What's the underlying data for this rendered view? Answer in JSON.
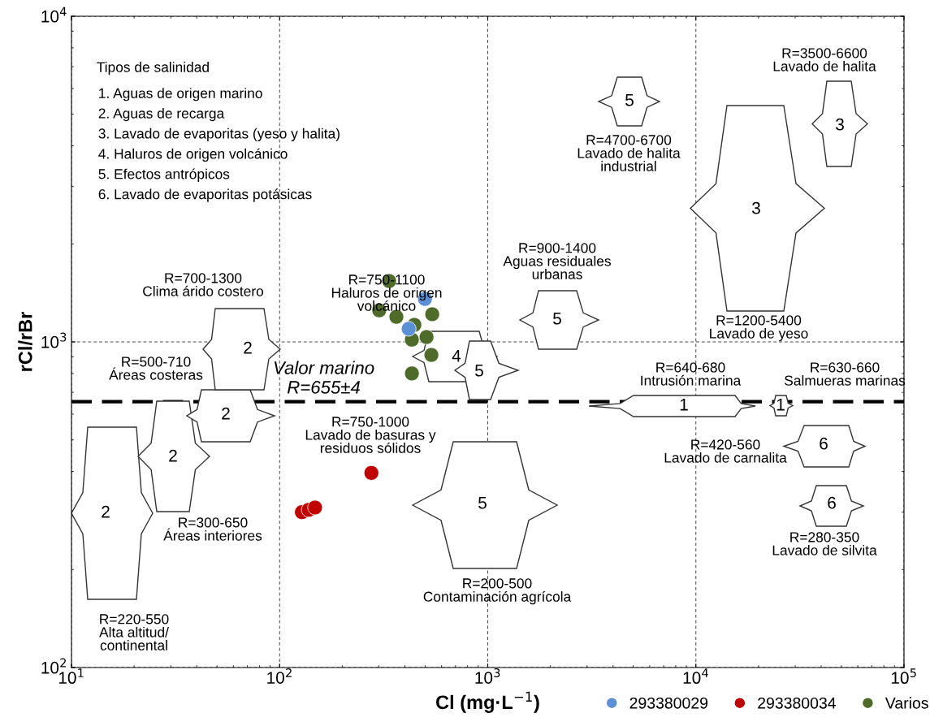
{
  "chart_data": {
    "type": "scatter",
    "xlabel": "Cl (mg·L$^{−1}$)",
    "ylabel": "rCl/rBr",
    "log": "xy",
    "grid": true,
    "legend": "bottom right",
    "marker": "circle",
    "xlim": [
      10,
      100000
    ],
    "ylim": [
      100,
      10000
    ],
    "xticks": [
      {
        "value": 10,
        "label": "10$^{1}$"
      },
      {
        "value": 100,
        "label": "10$^{2}$"
      },
      {
        "value": 1000,
        "label": "10$^{3}$"
      },
      {
        "value": 10000,
        "label": "10$^{4}$"
      },
      {
        "value": 100000,
        "label": "10$^{5}$"
      }
    ],
    "yticks": [
      {
        "value": 100,
        "label": "10$^{2}$"
      },
      {
        "value": 1000,
        "label": "10$^{3}$"
      },
      {
        "value": 10000,
        "label": "10$^{4}$"
      }
    ],
    "series": [
      {
        "name": "293380029",
        "color": "#5b8fd6",
        "x": [
          499,
          417
        ],
        "values": [
          1355,
          1097
        ]
      },
      {
        "name": "293380034",
        "color": "#c00000",
        "x": [
          276,
          128,
          138,
          148
        ],
        "values": [
          396,
          300,
          305,
          310
        ]
      },
      {
        "name": "Varios",
        "color": "#4f6b2a",
        "x": [
          336,
          301,
          364,
          541,
          444,
          432,
          508,
          536,
          432
        ],
        "values": [
          1538,
          1250,
          1194,
          1216,
          1128,
          1016,
          1035,
          912,
          800
        ]
      }
    ],
    "ref_lines": [
      {
        "axis": "y",
        "value": 655,
        "label": "Valor marino\nR=655±4",
        "color": "#000000",
        "line_style": "dashed"
      }
    ],
    "annotations": [
      "Tipos de salinidad",
      "1. Aguas de origen marino",
      "2. Aguas de recarga",
      "3. Lavado de evaporitas (yeso y halita)",
      "4. Haluros de origen volcánico",
      "5. Efectos antrópicos",
      "6. Lavado de evaporitas potásicas",
      "R=700-1300\nClima árido costero",
      "R=500-710\nÁreas costeras",
      "R=300-650\nÁreas interiores",
      "R=220-550\nAlta altitud/\ncontinental",
      "R=750-1100\nHaluros de origen\nvolcánico",
      "R=750-1000\nLavado de basuras y\nresiduos sólidos",
      "R=900-1400\nAguas residuales\nurbanas",
      "R=4700-6700\nLavado de halita\nindustrial",
      "R=3500-6600\nLavado de halita",
      "R=1200-5400\nLavado de yeso",
      "R=640-680\nIntrusión marina",
      "R=630-660\nSalmueras marinas",
      "R=420-560\nLavado de carnalita",
      "R=280-350\nLavado de silvita",
      "R=200-500\nContaminación agrícola",
      "2",
      "2",
      "2",
      "2",
      "4",
      "5",
      "5",
      "5",
      "3",
      "3",
      "1",
      "1",
      "5",
      "6",
      "6"
    ]
  }
}
